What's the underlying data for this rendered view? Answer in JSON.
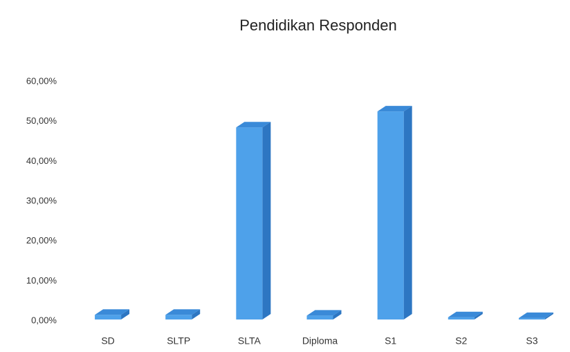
{
  "chart_data": {
    "type": "bar3d",
    "title": "Pendidikan Responden",
    "categories": [
      "SD",
      "SLTP",
      "SLTA",
      "Diploma",
      "S1",
      "S2",
      "S3"
    ],
    "values": [
      1,
      1,
      48,
      0.8,
      52,
      0.4,
      0.2
    ],
    "color": "#4ea1ea",
    "ylim": [
      0,
      60
    ],
    "yticks": [
      {
        "value": 0,
        "label": "0,00%"
      },
      {
        "value": 10,
        "label": "10,00%"
      },
      {
        "value": 20,
        "label": "20,00%"
      },
      {
        "value": 30,
        "label": "30,00%"
      },
      {
        "value": 40,
        "label": "40,00%"
      },
      {
        "value": 50,
        "label": "50,00%"
      },
      {
        "value": 60,
        "label": "60,00%"
      }
    ],
    "grid": false
  }
}
